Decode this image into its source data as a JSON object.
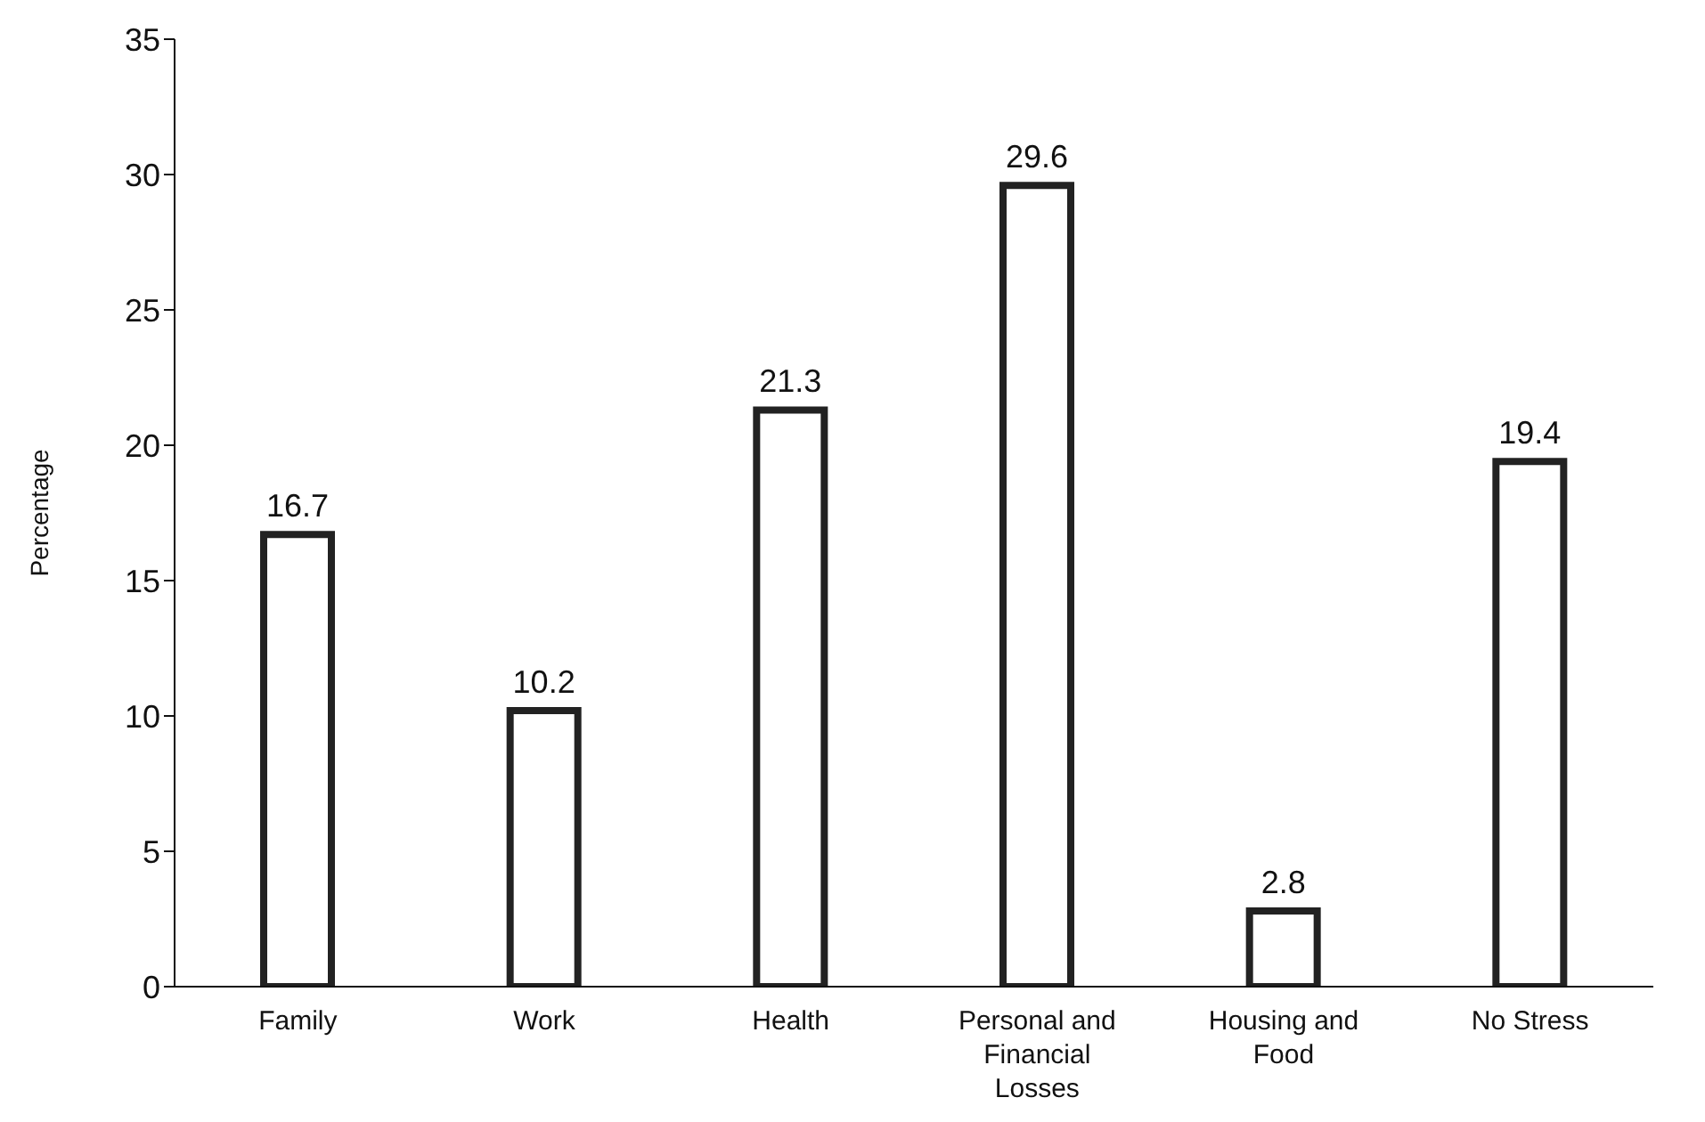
{
  "chart_data": {
    "type": "bar",
    "ylabel": "Percentage",
    "categories": [
      "Family",
      "Work",
      "Health",
      "Personal and Financial Losses",
      "Housing and Food",
      "No Stress"
    ],
    "values": [
      16.7,
      10.2,
      21.3,
      29.6,
      2.8,
      19.4
    ],
    "color": "#222222",
    "ylim": [
      0,
      35
    ],
    "yticks": [
      0,
      5,
      10,
      15,
      20,
      25,
      30,
      35
    ],
    "grid": false,
    "data_labels": true,
    "legend": false
  }
}
